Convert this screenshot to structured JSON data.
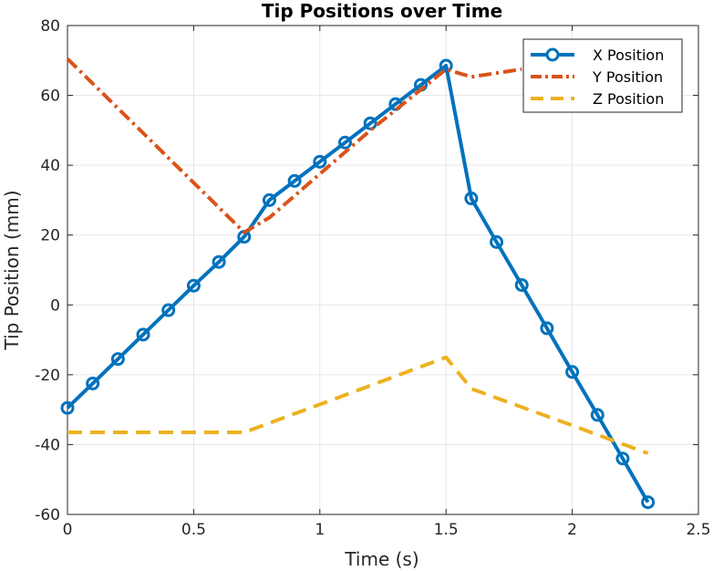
{
  "chart_data": {
    "type": "line",
    "title": "Tip Positions over Time",
    "xlabel": "Time (s)",
    "ylabel": "Tip Position (mm)",
    "xlim": [
      0,
      2.5
    ],
    "ylim": [
      -60,
      80
    ],
    "xticks": [
      0,
      0.5,
      1,
      1.5,
      2,
      2.5
    ],
    "xtick_labels": [
      "0",
      "0.5",
      "1",
      "1.5",
      "2",
      "2.5"
    ],
    "yticks": [
      -60,
      -40,
      -20,
      0,
      20,
      40,
      60,
      80
    ],
    "ytick_labels": [
      "-60",
      "-40",
      "-20",
      "0",
      "20",
      "40",
      "60",
      "80"
    ],
    "grid": true,
    "legend_position": "top-right",
    "series": [
      {
        "name": "X Position",
        "color": "#0072BD",
        "style": "solid",
        "marker": "circle",
        "x": [
          0,
          0.1,
          0.2,
          0.3,
          0.4,
          0.5,
          0.6,
          0.7,
          0.8,
          0.9,
          1.0,
          1.1,
          1.2,
          1.3,
          1.4,
          1.5,
          1.6,
          1.7,
          1.8,
          1.9,
          2.0,
          2.1,
          2.2,
          2.3
        ],
        "y": [
          -29.5,
          -22.5,
          -15.5,
          -8.5,
          -1.5,
          5.5,
          12.3,
          19.5,
          30.0,
          35.5,
          41.0,
          46.5,
          52.0,
          57.5,
          63.0,
          68.5,
          30.5,
          18.0,
          5.7,
          -6.7,
          -19.2,
          -31.5,
          -44.0,
          -56.5
        ]
      },
      {
        "name": "Y Position",
        "color": "#D95319",
        "style": "dash-dot",
        "marker": "none",
        "x": [
          0,
          0.7,
          0.8,
          1.0,
          1.2,
          1.5,
          1.6,
          1.8
        ],
        "y": [
          70.5,
          20.8,
          25.0,
          37.5,
          50.0,
          67.5,
          65.3,
          67.5
        ]
      },
      {
        "name": "Z Position",
        "color": "#EDB120",
        "style": "dashed",
        "marker": "none",
        "x": [
          0,
          0.7,
          1.0,
          1.5,
          1.6,
          2.0,
          2.3
        ],
        "y": [
          -36.5,
          -36.5,
          -28.5,
          -15.0,
          -24.0,
          -34.5,
          -42.5
        ]
      }
    ]
  }
}
